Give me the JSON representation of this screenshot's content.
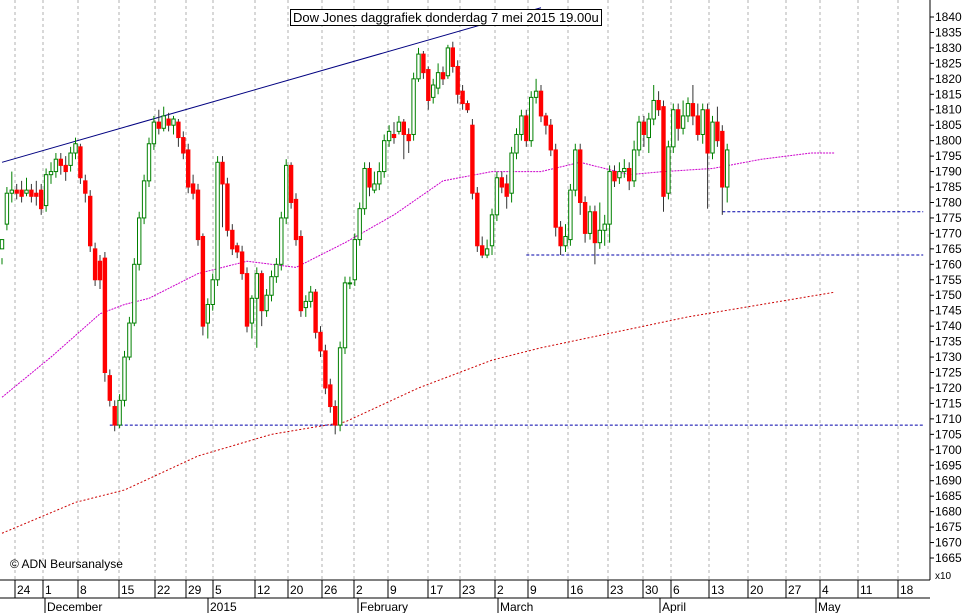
{
  "chart_data": {
    "type": "candlestick",
    "title": "Dow Jones daggrafiek donderdag 7 mei 2015 19.00u",
    "copyright": "© ADN Beursanalyse",
    "y_axis_multiplier": "x10",
    "ylim": [
      1660,
      1843
    ],
    "yticks": [
      1665,
      1670,
      1675,
      1680,
      1685,
      1690,
      1695,
      1700,
      1705,
      1710,
      1715,
      1720,
      1725,
      1730,
      1735,
      1740,
      1745,
      1750,
      1755,
      1760,
      1765,
      1770,
      1775,
      1780,
      1785,
      1790,
      1795,
      1800,
      1805,
      1810,
      1815,
      1820,
      1825,
      1830,
      1835,
      1840
    ],
    "x_day_labels": [
      "24",
      "1",
      "8",
      "15",
      "22",
      "29",
      "5",
      "12",
      "20",
      "26",
      "2",
      "9",
      "17",
      "23",
      "2",
      "9",
      "16",
      "23",
      "30",
      "6",
      "13",
      "20",
      "27",
      "4",
      "11",
      "18"
    ],
    "x_month_labels": [
      "December",
      "2015",
      "February",
      "March",
      "April",
      "May"
    ],
    "colors": {
      "up": "#008000",
      "down": "#ff0000",
      "ma_short": "#cc00cc",
      "ma_long": "#cc0000",
      "support": "#0000aa",
      "trend": "#000080",
      "grid": "#b0b0b0"
    },
    "moving_average_short": [
      [
        0,
        1717
      ],
      [
        10,
        1730
      ],
      [
        20,
        1744
      ],
      [
        25,
        1747
      ],
      [
        30,
        1749
      ],
      [
        40,
        1757
      ],
      [
        50,
        1761
      ],
      [
        55,
        1760
      ],
      [
        60,
        1759
      ],
      [
        70,
        1767
      ],
      [
        80,
        1776
      ],
      [
        90,
        1787
      ],
      [
        100,
        1790
      ],
      [
        110,
        1790
      ],
      [
        118,
        1793
      ],
      [
        128,
        1789
      ],
      [
        135,
        1790
      ],
      [
        145,
        1791
      ],
      [
        155,
        1794
      ],
      [
        165,
        1796
      ],
      [
        170,
        1796
      ]
    ],
    "moving_average_long": [
      [
        0,
        1673
      ],
      [
        15,
        1683
      ],
      [
        25,
        1687
      ],
      [
        40,
        1698
      ],
      [
        55,
        1705
      ],
      [
        70,
        1709
      ],
      [
        85,
        1720
      ],
      [
        100,
        1729
      ],
      [
        110,
        1733
      ],
      [
        125,
        1738
      ],
      [
        140,
        1743
      ],
      [
        155,
        1747
      ],
      [
        170,
        1751
      ]
    ],
    "support_lines": [
      {
        "level": 1708,
        "from": 22,
        "to": 188
      },
      {
        "level": 1763,
        "from": 107,
        "to": 188
      },
      {
        "level": 1777,
        "from": 147,
        "to": 188
      }
    ],
    "trend_line": [
      [
        0,
        1793
      ],
      [
        110,
        1843
      ]
    ],
    "candles": [
      [
        1765,
        1768,
        1762,
        1760
      ],
      [
        1773,
        1783,
        1785,
        1771
      ],
      [
        1783,
        1784,
        1790,
        1780
      ],
      [
        1784,
        1783,
        1786,
        1781
      ],
      [
        1784,
        1782,
        1787,
        1780
      ],
      [
        1783,
        1784,
        1788,
        1782
      ],
      [
        1784,
        1782,
        1786,
        1780
      ],
      [
        1783,
        1782,
        1787,
        1779
      ],
      [
        1784,
        1778,
        1786,
        1776
      ],
      [
        1779,
        1789,
        1791,
        1777
      ],
      [
        1789,
        1790,
        1793,
        1786
      ],
      [
        1790,
        1794,
        1796,
        1788
      ],
      [
        1794,
        1792,
        1796,
        1789
      ],
      [
        1792,
        1790,
        1795,
        1787
      ],
      [
        1792,
        1796,
        1798,
        1790
      ],
      [
        1796,
        1799,
        1801,
        1794
      ],
      [
        1798,
        1788,
        1799,
        1786
      ],
      [
        1787,
        1783,
        1789,
        1780
      ],
      [
        1782,
        1766,
        1784,
        1764
      ],
      [
        1765,
        1755,
        1767,
        1753
      ],
      [
        1761,
        1755,
        1763,
        1752
      ],
      [
        1762,
        1725,
        1764,
        1722
      ],
      [
        1724,
        1716,
        1726,
        1714
      ],
      [
        1714,
        1708,
        1716,
        1706
      ],
      [
        1708,
        1716,
        1718,
        1707
      ],
      [
        1716,
        1730,
        1732,
        1714
      ],
      [
        1730,
        1741,
        1743,
        1729
      ],
      [
        1741,
        1760,
        1762,
        1740
      ],
      [
        1760,
        1775,
        1777,
        1758
      ],
      [
        1775,
        1787,
        1789,
        1773
      ],
      [
        1787,
        1799,
        1801,
        1785
      ],
      [
        1799,
        1806,
        1808,
        1797
      ],
      [
        1806,
        1804,
        1810,
        1802
      ],
      [
        1804,
        1808,
        1811,
        1803
      ],
      [
        1807,
        1805,
        1809,
        1803
      ],
      [
        1805,
        1807,
        1808,
        1802
      ],
      [
        1806,
        1801,
        1807,
        1798
      ],
      [
        1801,
        1796,
        1803,
        1794
      ],
      [
        1797,
        1785,
        1799,
        1783
      ],
      [
        1786,
        1783,
        1789,
        1781
      ],
      [
        1784,
        1768,
        1786,
        1766
      ],
      [
        1769,
        1740,
        1770,
        1737
      ],
      [
        1741,
        1747,
        1749,
        1736
      ],
      [
        1747,
        1755,
        1757,
        1745
      ],
      [
        1755,
        1793,
        1795,
        1753
      ],
      [
        1793,
        1786,
        1795,
        1772
      ],
      [
        1786,
        1771,
        1788,
        1769
      ],
      [
        1771,
        1765,
        1773,
        1763
      ],
      [
        1766,
        1764,
        1767,
        1762
      ],
      [
        1764,
        1757,
        1766,
        1755
      ],
      [
        1757,
        1740,
        1759,
        1738
      ],
      [
        1741,
        1749,
        1750,
        1736
      ],
      [
        1749,
        1757,
        1759,
        1733
      ],
      [
        1757,
        1745,
        1758,
        1740
      ],
      [
        1745,
        1750,
        1752,
        1743
      ],
      [
        1750,
        1756,
        1758,
        1748
      ],
      [
        1756,
        1760,
        1762,
        1754
      ],
      [
        1760,
        1775,
        1777,
        1758
      ],
      [
        1775,
        1792,
        1794,
        1773
      ],
      [
        1792,
        1780,
        1793,
        1778
      ],
      [
        1781,
        1768,
        1783,
        1766
      ],
      [
        1769,
        1745,
        1771,
        1743
      ],
      [
        1746,
        1748,
        1750,
        1743
      ],
      [
        1748,
        1751,
        1753,
        1746
      ],
      [
        1751,
        1738,
        1752,
        1736
      ],
      [
        1738,
        1732,
        1740,
        1730
      ],
      [
        1732,
        1720,
        1734,
        1718
      ],
      [
        1721,
        1714,
        1723,
        1712
      ],
      [
        1714,
        1708,
        1716,
        1705
      ],
      [
        1708,
        1733,
        1735,
        1706
      ],
      [
        1733,
        1754,
        1756,
        1731
      ],
      [
        1754,
        1754,
        1756,
        1752
      ],
      [
        1755,
        1768,
        1770,
        1753
      ],
      [
        1768,
        1778,
        1780,
        1766
      ],
      [
        1778,
        1791,
        1793,
        1776
      ],
      [
        1791,
        1785,
        1793,
        1782
      ],
      [
        1784,
        1786,
        1790,
        1783
      ],
      [
        1786,
        1790,
        1793,
        1784
      ],
      [
        1790,
        1800,
        1802,
        1788
      ],
      [
        1800,
        1803,
        1805,
        1798
      ],
      [
        1802,
        1801,
        1806,
        1799
      ],
      [
        1803,
        1806,
        1808,
        1802
      ],
      [
        1806,
        1802,
        1807,
        1794
      ],
      [
        1802,
        1800,
        1804,
        1796
      ],
      [
        1802,
        1820,
        1822,
        1800
      ],
      [
        1820,
        1828,
        1830,
        1819
      ],
      [
        1828,
        1822,
        1829,
        1820
      ],
      [
        1823,
        1813,
        1824,
        1810
      ],
      [
        1814,
        1818,
        1820,
        1812
      ],
      [
        1817,
        1822,
        1825,
        1815
      ],
      [
        1822,
        1820,
        1824,
        1818
      ],
      [
        1821,
        1830,
        1831,
        1820
      ],
      [
        1830,
        1824,
        1832,
        1822
      ],
      [
        1824,
        1815,
        1826,
        1812
      ],
      [
        1816,
        1812,
        1818,
        1810
      ],
      [
        1812,
        1810,
        1813,
        1809
      ],
      [
        1805,
        1783,
        1807,
        1781
      ],
      [
        1783,
        1766,
        1785,
        1764
      ],
      [
        1766,
        1763,
        1769,
        1762
      ],
      [
        1763,
        1765,
        1768,
        1762
      ],
      [
        1766,
        1776,
        1778,
        1763
      ],
      [
        1776,
        1788,
        1790,
        1774
      ],
      [
        1788,
        1785,
        1790,
        1783
      ],
      [
        1786,
        1782,
        1789,
        1778
      ],
      [
        1783,
        1796,
        1798,
        1780
      ],
      [
        1796,
        1802,
        1804,
        1794
      ],
      [
        1802,
        1808,
        1810,
        1800
      ],
      [
        1808,
        1800,
        1810,
        1798
      ],
      [
        1800,
        1814,
        1816,
        1798
      ],
      [
        1814,
        1816,
        1820,
        1812
      ],
      [
        1816,
        1808,
        1818,
        1806
      ],
      [
        1808,
        1805,
        1809,
        1802
      ],
      [
        1805,
        1797,
        1807,
        1795
      ],
      [
        1797,
        1772,
        1799,
        1769
      ],
      [
        1772,
        1766,
        1774,
        1763
      ],
      [
        1766,
        1769,
        1773,
        1764
      ],
      [
        1768,
        1784,
        1786,
        1766
      ],
      [
        1784,
        1797,
        1799,
        1782
      ],
      [
        1797,
        1780,
        1799,
        1776
      ],
      [
        1780,
        1770,
        1782,
        1767
      ],
      [
        1770,
        1777,
        1779,
        1768
      ],
      [
        1777,
        1767,
        1779,
        1760
      ],
      [
        1767,
        1771,
        1780,
        1765
      ],
      [
        1771,
        1773,
        1776,
        1766
      ],
      [
        1773,
        1790,
        1792,
        1767
      ],
      [
        1790,
        1787,
        1792,
        1785
      ],
      [
        1788,
        1790,
        1793,
        1786
      ],
      [
        1790,
        1791,
        1794,
        1788
      ],
      [
        1791,
        1787,
        1793,
        1784
      ],
      [
        1787,
        1797,
        1800,
        1785
      ],
      [
        1797,
        1806,
        1808,
        1795
      ],
      [
        1806,
        1802,
        1808,
        1798
      ],
      [
        1801,
        1807,
        1809,
        1796
      ],
      [
        1807,
        1813,
        1818,
        1805
      ],
      [
        1813,
        1810,
        1816,
        1808
      ],
      [
        1811,
        1782,
        1813,
        1777
      ],
      [
        1783,
        1798,
        1800,
        1781
      ],
      [
        1798,
        1810,
        1812,
        1796
      ],
      [
        1810,
        1804,
        1812,
        1800
      ],
      [
        1804,
        1808,
        1813,
        1802
      ],
      [
        1808,
        1812,
        1814,
        1806
      ],
      [
        1812,
        1808,
        1818,
        1805
      ],
      [
        1808,
        1802,
        1812,
        1800
      ],
      [
        1802,
        1810,
        1812,
        1799
      ],
      [
        1810,
        1796,
        1812,
        1778
      ],
      [
        1796,
        1806,
        1808,
        1794
      ],
      [
        1806,
        1800,
        1811,
        1798
      ],
      [
        1803,
        1785,
        1805,
        1776
      ],
      [
        1785,
        1797,
        1799,
        1780
      ]
    ]
  }
}
